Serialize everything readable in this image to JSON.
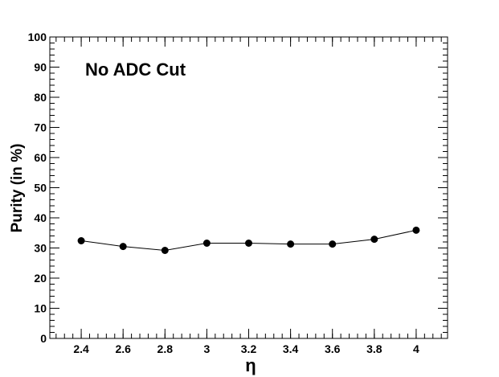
{
  "chart_data": {
    "type": "line",
    "title": "",
    "annotation": "No ADC Cut",
    "xlabel": "η",
    "ylabel": "Purity (in %)",
    "xlim": [
      2.25,
      4.15
    ],
    "ylim": [
      0,
      100
    ],
    "x_ticks": [
      2.4,
      2.6,
      2.8,
      3,
      3.2,
      3.4,
      3.6,
      3.8,
      4
    ],
    "x_tick_labels": [
      "2.4",
      "2.6",
      "2.8",
      "3",
      "3.2",
      "3.4",
      "3.6",
      "3.8",
      "4"
    ],
    "y_ticks": [
      0,
      10,
      20,
      30,
      40,
      50,
      60,
      70,
      80,
      90,
      100
    ],
    "y_tick_labels": [
      "0",
      "10",
      "20",
      "30",
      "40",
      "50",
      "60",
      "70",
      "80",
      "90",
      "100"
    ],
    "grid": false,
    "legend": "none",
    "series": [
      {
        "x": [
          2.4,
          2.6,
          2.8,
          3.0,
          3.2,
          3.4,
          3.6,
          3.8,
          4.0
        ],
        "values": [
          32.4,
          30.5,
          29.2,
          31.6,
          31.6,
          31.3,
          31.3,
          32.9,
          35.9
        ],
        "color": "#000000",
        "marker": "circle"
      }
    ]
  }
}
